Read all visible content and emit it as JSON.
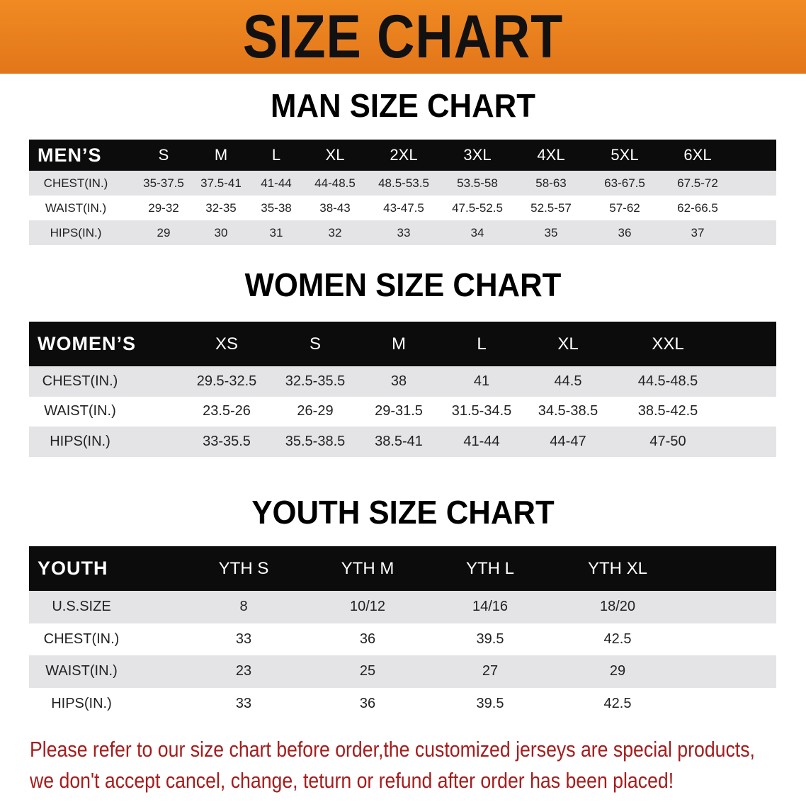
{
  "banner": {
    "title": "SIZE CHART",
    "color": "#e8801f"
  },
  "men": {
    "title": "MAN SIZE CHART",
    "headers": [
      "MEN’S",
      "S",
      "M",
      "L",
      "XL",
      "2XL",
      "3XL",
      "4XL",
      "5XL",
      "6XL"
    ],
    "rows": [
      [
        "CHEST(IN.)",
        "35-37.5",
        "37.5-41",
        "41-44",
        "44-48.5",
        "48.5-53.5",
        "53.5-58",
        "58-63",
        "63-67.5",
        "67.5-72"
      ],
      [
        "WAIST(IN.)",
        "29-32",
        "32-35",
        "35-38",
        "38-43",
        "43-47.5",
        "47.5-52.5",
        "52.5-57",
        "57-62",
        "62-66.5"
      ],
      [
        "HIPS(IN.)",
        "29",
        "30",
        "31",
        "32",
        "33",
        "34",
        "35",
        "36",
        "37"
      ]
    ]
  },
  "women": {
    "title": "WOMEN SIZE CHART",
    "headers": [
      "WOMEN’S",
      "XS",
      "S",
      "M",
      "L",
      "XL",
      "XXL"
    ],
    "rows": [
      [
        "CHEST(IN.)",
        "29.5-32.5",
        "32.5-35.5",
        "38",
        "41",
        "44.5",
        "44.5-48.5"
      ],
      [
        "WAIST(IN.)",
        "23.5-26",
        "26-29",
        "29-31.5",
        "31.5-34.5",
        "34.5-38.5",
        "38.5-42.5"
      ],
      [
        "HIPS(IN.)",
        "33-35.5",
        "35.5-38.5",
        "38.5-41",
        "41-44",
        "44-47",
        "47-50"
      ]
    ]
  },
  "youth": {
    "title": "YOUTH SIZE CHART",
    "headers": [
      "YOUTH",
      "YTH S",
      "YTH M",
      "YTH L",
      "YTH XL"
    ],
    "rows": [
      [
        "U.S.SIZE",
        "8",
        "10/12",
        "14/16",
        "18/20"
      ],
      [
        "CHEST(IN.)",
        "33",
        "36",
        "39.5",
        "42.5"
      ],
      [
        "WAIST(IN.)",
        "23",
        "25",
        "27",
        "29"
      ],
      [
        "HIPS(IN.)",
        "33",
        "36",
        "39.5",
        "42.5"
      ]
    ]
  },
  "note": {
    "line1": "Please refer to our size chart before order,the customized jerseys are special products,",
    "line2": "we don't accept cancel, change, teturn or refund after order has been placed!",
    "color": "#a61c1c"
  }
}
